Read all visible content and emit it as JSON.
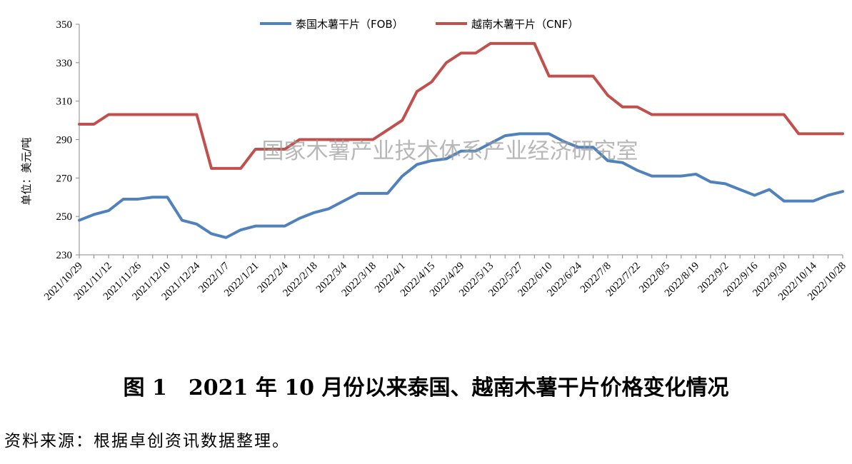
{
  "chart_data": {
    "type": "line",
    "title": "",
    "xlabel": "",
    "ylabel": "单位：美元/吨",
    "ylim": [
      230,
      350
    ],
    "y_ticks": [
      230,
      250,
      270,
      290,
      310,
      330,
      350
    ],
    "grid": false,
    "legend_position": "top-center",
    "x_tick_labels": [
      "2021/10/29",
      "2021/11/12",
      "2021/11/26",
      "2021/12/10",
      "2021/12/24",
      "2022/1/7",
      "2022/1/21",
      "2022/2/4",
      "2022/2/18",
      "2022/3/4",
      "2022/3/18",
      "2022/4/1",
      "2022/4/15",
      "2022/4/29",
      "2022/5/13",
      "2022/5/27",
      "2022/6/10",
      "2022/6/24",
      "2022/7/8",
      "2022/7/22",
      "2022/8/5",
      "2022/8/19",
      "2022/9/2",
      "2022/9/16",
      "2022/9/30",
      "2022/10/14",
      "2022/10/28"
    ],
    "x": [
      "2021/10/29",
      "2021/11/5",
      "2021/11/12",
      "2021/11/19",
      "2021/11/26",
      "2021/12/3",
      "2021/12/10",
      "2021/12/17",
      "2021/12/24",
      "2021/12/31",
      "2022/1/7",
      "2022/1/14",
      "2022/1/21",
      "2022/1/28",
      "2022/2/4",
      "2022/2/11",
      "2022/2/18",
      "2022/2/25",
      "2022/3/4",
      "2022/3/11",
      "2022/3/18",
      "2022/3/25",
      "2022/4/1",
      "2022/4/8",
      "2022/4/15",
      "2022/4/22",
      "2022/4/29",
      "2022/5/6",
      "2022/5/13",
      "2022/5/20",
      "2022/5/27",
      "2022/6/3",
      "2022/6/10",
      "2022/6/17",
      "2022/6/24",
      "2022/7/1",
      "2022/7/8",
      "2022/7/15",
      "2022/7/22",
      "2022/7/29",
      "2022/8/5",
      "2022/8/12",
      "2022/8/19",
      "2022/8/26",
      "2022/9/2",
      "2022/9/9",
      "2022/9/16",
      "2022/9/23",
      "2022/9/30",
      "2022/10/7",
      "2022/10/14",
      "2022/10/21",
      "2022/10/28"
    ],
    "series": [
      {
        "name": "泰国木薯干片（FOB）",
        "color": "#4f81bd",
        "values": [
          248,
          251,
          253,
          259,
          259,
          260,
          260,
          248,
          246,
          241,
          239,
          243,
          245,
          245,
          245,
          249,
          252,
          254,
          258,
          262,
          262,
          262,
          271,
          277,
          279,
          280,
          284,
          284,
          288,
          292,
          293,
          293,
          293,
          289,
          286,
          286,
          279,
          278,
          274,
          271,
          271,
          271,
          272,
          268,
          267,
          264,
          261,
          264,
          258,
          258,
          258,
          261,
          263
        ]
      },
      {
        "name": "越南木薯干片（CNF）",
        "color": "#c0504d",
        "values": [
          298,
          298,
          303,
          303,
          303,
          303,
          303,
          303,
          303,
          275,
          275,
          275,
          285,
          285,
          285,
          290,
          290,
          290,
          290,
          290,
          290,
          295,
          300,
          315,
          320,
          330,
          335,
          335,
          340,
          340,
          340,
          340,
          323,
          323,
          323,
          323,
          313,
          307,
          307,
          303,
          303,
          303,
          303,
          303,
          303,
          303,
          303,
          303,
          303,
          293,
          293,
          293,
          293
        ]
      }
    ]
  },
  "watermark": "国家木薯产业技术体系产业经济研究室",
  "caption": "图 1　2021 年 10 月份以来泰国、越南木薯干片价格变化情况",
  "source": "资料来源：根据卓创资讯数据整理。"
}
